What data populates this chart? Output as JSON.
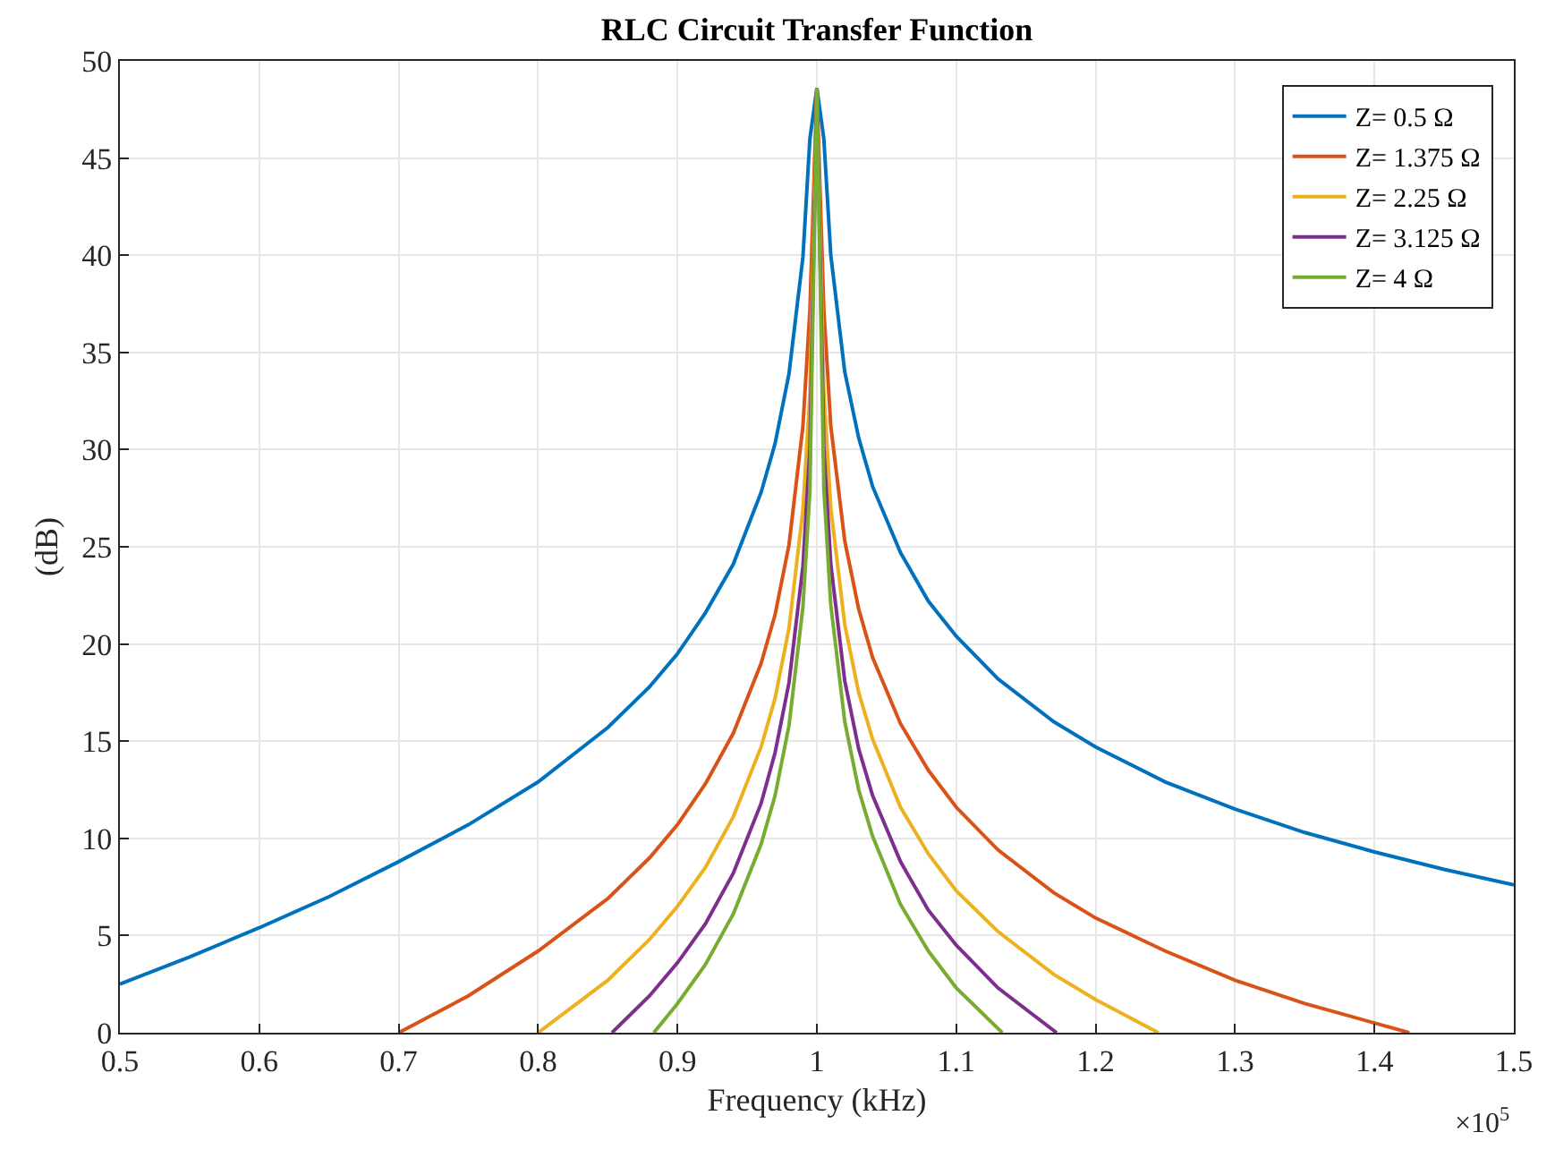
{
  "chart_data": {
    "type": "line",
    "title": "RLC Circuit Transfer Function",
    "xlabel": "Frequency (kHz)",
    "ylabel": "(dB)",
    "annotations": [
      "×10$^{5}$"
    ],
    "xlim": [
      0.5,
      1.5
    ],
    "xticks": [
      0.5,
      0.6,
      0.7,
      0.8,
      0.9,
      1,
      1.1,
      1.2,
      1.3,
      1.4,
      1.5
    ],
    "ylim": [
      0,
      50
    ],
    "yticks": [
      0,
      5,
      10,
      15,
      20,
      25,
      30,
      35,
      40,
      45,
      50
    ],
    "grid": true,
    "legend": "top right",
    "marker": "none",
    "line_style": "solid",
    "series": [
      {
        "name": "Z= 0.5 Ω",
        "color": "#0072bd",
        "x": [
          0.5,
          0.55,
          0.6,
          0.65,
          0.7,
          0.75,
          0.8,
          0.85,
          0.88,
          0.9,
          0.92,
          0.94,
          0.96,
          0.97,
          0.98,
          0.99,
          0.995,
          1.0,
          1.005,
          1.01,
          1.02,
          1.03,
          1.04,
          1.06,
          1.08,
          1.1,
          1.13,
          1.17,
          1.2,
          1.25,
          1.3,
          1.35,
          1.4,
          1.45,
          1.5
        ],
        "values": [
          2.5,
          3.9,
          5.4,
          7.0,
          8.8,
          10.7,
          12.9,
          15.7,
          17.8,
          19.5,
          21.6,
          24.1,
          27.8,
          30.3,
          33.9,
          39.9,
          46.0,
          48.6,
          46.0,
          40.0,
          34.0,
          30.6,
          28.1,
          24.7,
          22.2,
          20.4,
          18.2,
          16.0,
          14.7,
          12.9,
          11.5,
          10.3,
          9.3,
          8.4,
          7.6
        ]
      },
      {
        "name": "Z= 1.375 Ω",
        "color": "#d95319",
        "x": [
          0.7,
          0.75,
          0.8,
          0.85,
          0.88,
          0.9,
          0.92,
          0.94,
          0.96,
          0.97,
          0.98,
          0.99,
          0.995,
          1.0,
          1.005,
          1.01,
          1.02,
          1.03,
          1.04,
          1.06,
          1.08,
          1.1,
          1.13,
          1.17,
          1.2,
          1.25,
          1.3,
          1.35,
          1.4,
          1.425
        ],
        "values": [
          0.0,
          1.9,
          4.2,
          6.9,
          9.0,
          10.7,
          12.8,
          15.4,
          19.0,
          21.5,
          25.1,
          31.2,
          37.2,
          48.6,
          37.2,
          31.2,
          25.3,
          21.8,
          19.3,
          15.9,
          13.5,
          11.6,
          9.4,
          7.2,
          5.9,
          4.2,
          2.7,
          1.5,
          0.5,
          0.0
        ]
      },
      {
        "name": "Z= 2.25 Ω",
        "color": "#edb120",
        "x": [
          0.8,
          0.85,
          0.88,
          0.9,
          0.92,
          0.94,
          0.96,
          0.97,
          0.98,
          0.99,
          0.995,
          1.0,
          1.005,
          1.01,
          1.02,
          1.03,
          1.04,
          1.06,
          1.08,
          1.1,
          1.13,
          1.17,
          1.2,
          1.245
        ],
        "values": [
          0.0,
          2.7,
          4.8,
          6.5,
          8.5,
          11.1,
          14.7,
          17.2,
          20.8,
          26.9,
          32.9,
          48.6,
          33.0,
          27.0,
          21.0,
          17.5,
          15.1,
          11.6,
          9.2,
          7.3,
          5.2,
          3.0,
          1.7,
          0.0
        ]
      },
      {
        "name": "Z= 3.125 Ω",
        "color": "#7e2f8e",
        "x": [
          0.853,
          0.88,
          0.9,
          0.92,
          0.94,
          0.96,
          0.97,
          0.98,
          0.99,
          0.995,
          1.0,
          1.005,
          1.01,
          1.02,
          1.03,
          1.04,
          1.06,
          1.08,
          1.1,
          1.13,
          1.172
        ],
        "values": [
          0.0,
          1.9,
          3.6,
          5.6,
          8.2,
          11.8,
          14.4,
          18.0,
          24.0,
          30.1,
          48.6,
          30.1,
          24.1,
          18.1,
          14.6,
          12.2,
          8.8,
          6.3,
          4.5,
          2.3,
          0.0
        ]
      },
      {
        "name": "Z= 4 Ω",
        "color": "#77ac30",
        "x": [
          0.883,
          0.9,
          0.92,
          0.94,
          0.96,
          0.97,
          0.98,
          0.99,
          0.995,
          1.0,
          1.005,
          1.01,
          1.02,
          1.03,
          1.04,
          1.06,
          1.08,
          1.1,
          1.133
        ],
        "values": [
          0.0,
          1.5,
          3.5,
          6.1,
          9.7,
          12.2,
          15.8,
          21.9,
          27.9,
          48.6,
          28.0,
          22.0,
          16.0,
          12.5,
          10.1,
          6.6,
          4.2,
          2.3,
          0.0
        ]
      }
    ]
  }
}
